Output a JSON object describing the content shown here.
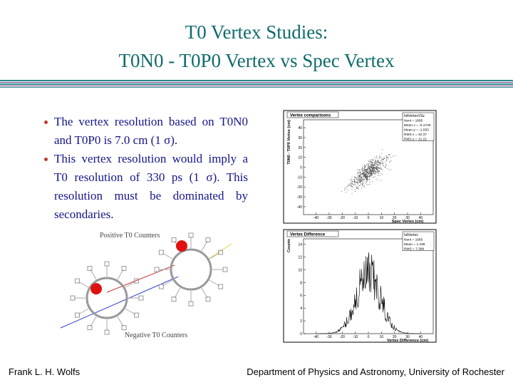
{
  "header": {
    "title_lines": [
      "T0 Vertex Studies:",
      "T0N0 - T0P0 Vertex vs Spec Vertex"
    ]
  },
  "bullets": [
    "The vertex resolution based on T0N0 and T0P0 is 7.0 cm (1 σ).",
    "This vertex resolution would imply a T0 resolution of 330 ps (1 σ).  This resolution must be dominated by secondaries."
  ],
  "plots": [
    {
      "kind": "scatter",
      "title": "Vertex comparisons",
      "stats_title": "hdVertexVSz",
      "stats": [
        "Nent = 1685",
        "Mean x = -0.1729",
        "Mean y = -1.553",
        "RMS x = 10.37",
        "RMS y = 12.22"
      ],
      "ylabel": "T0N0 - T0P0 Vertex (cm)",
      "xlabel": "Spec Vertex (cm)",
      "xticks": [
        -40,
        -30,
        -20,
        -10,
        0,
        10,
        20,
        30,
        40
      ],
      "yticks": [
        -40,
        -30,
        -20,
        -10,
        0,
        10,
        20,
        30,
        40
      ]
    },
    {
      "kind": "histogram",
      "title": "Vertex Difference",
      "stats_title": "hdVertex",
      "stats": [
        "Nent = 1685",
        "Mean = 1.436",
        "RMS = 7.398"
      ],
      "ylabel": "Counts",
      "xlabel": "Vertex Difference (cm)",
      "xticks": [
        -40,
        -30,
        -20,
        -10,
        0,
        10,
        20,
        30,
        40
      ],
      "yticks": [
        0,
        2,
        4,
        6,
        8,
        10,
        12,
        14
      ]
    }
  ],
  "diagram": {
    "top_label": "Positive T0 Counters",
    "bottom_label": "Negative T0 Counters"
  },
  "footer": {
    "left": "Frank L. H. Wolfs",
    "right": "Department of Physics and Astronomy, University of Rochester"
  }
}
